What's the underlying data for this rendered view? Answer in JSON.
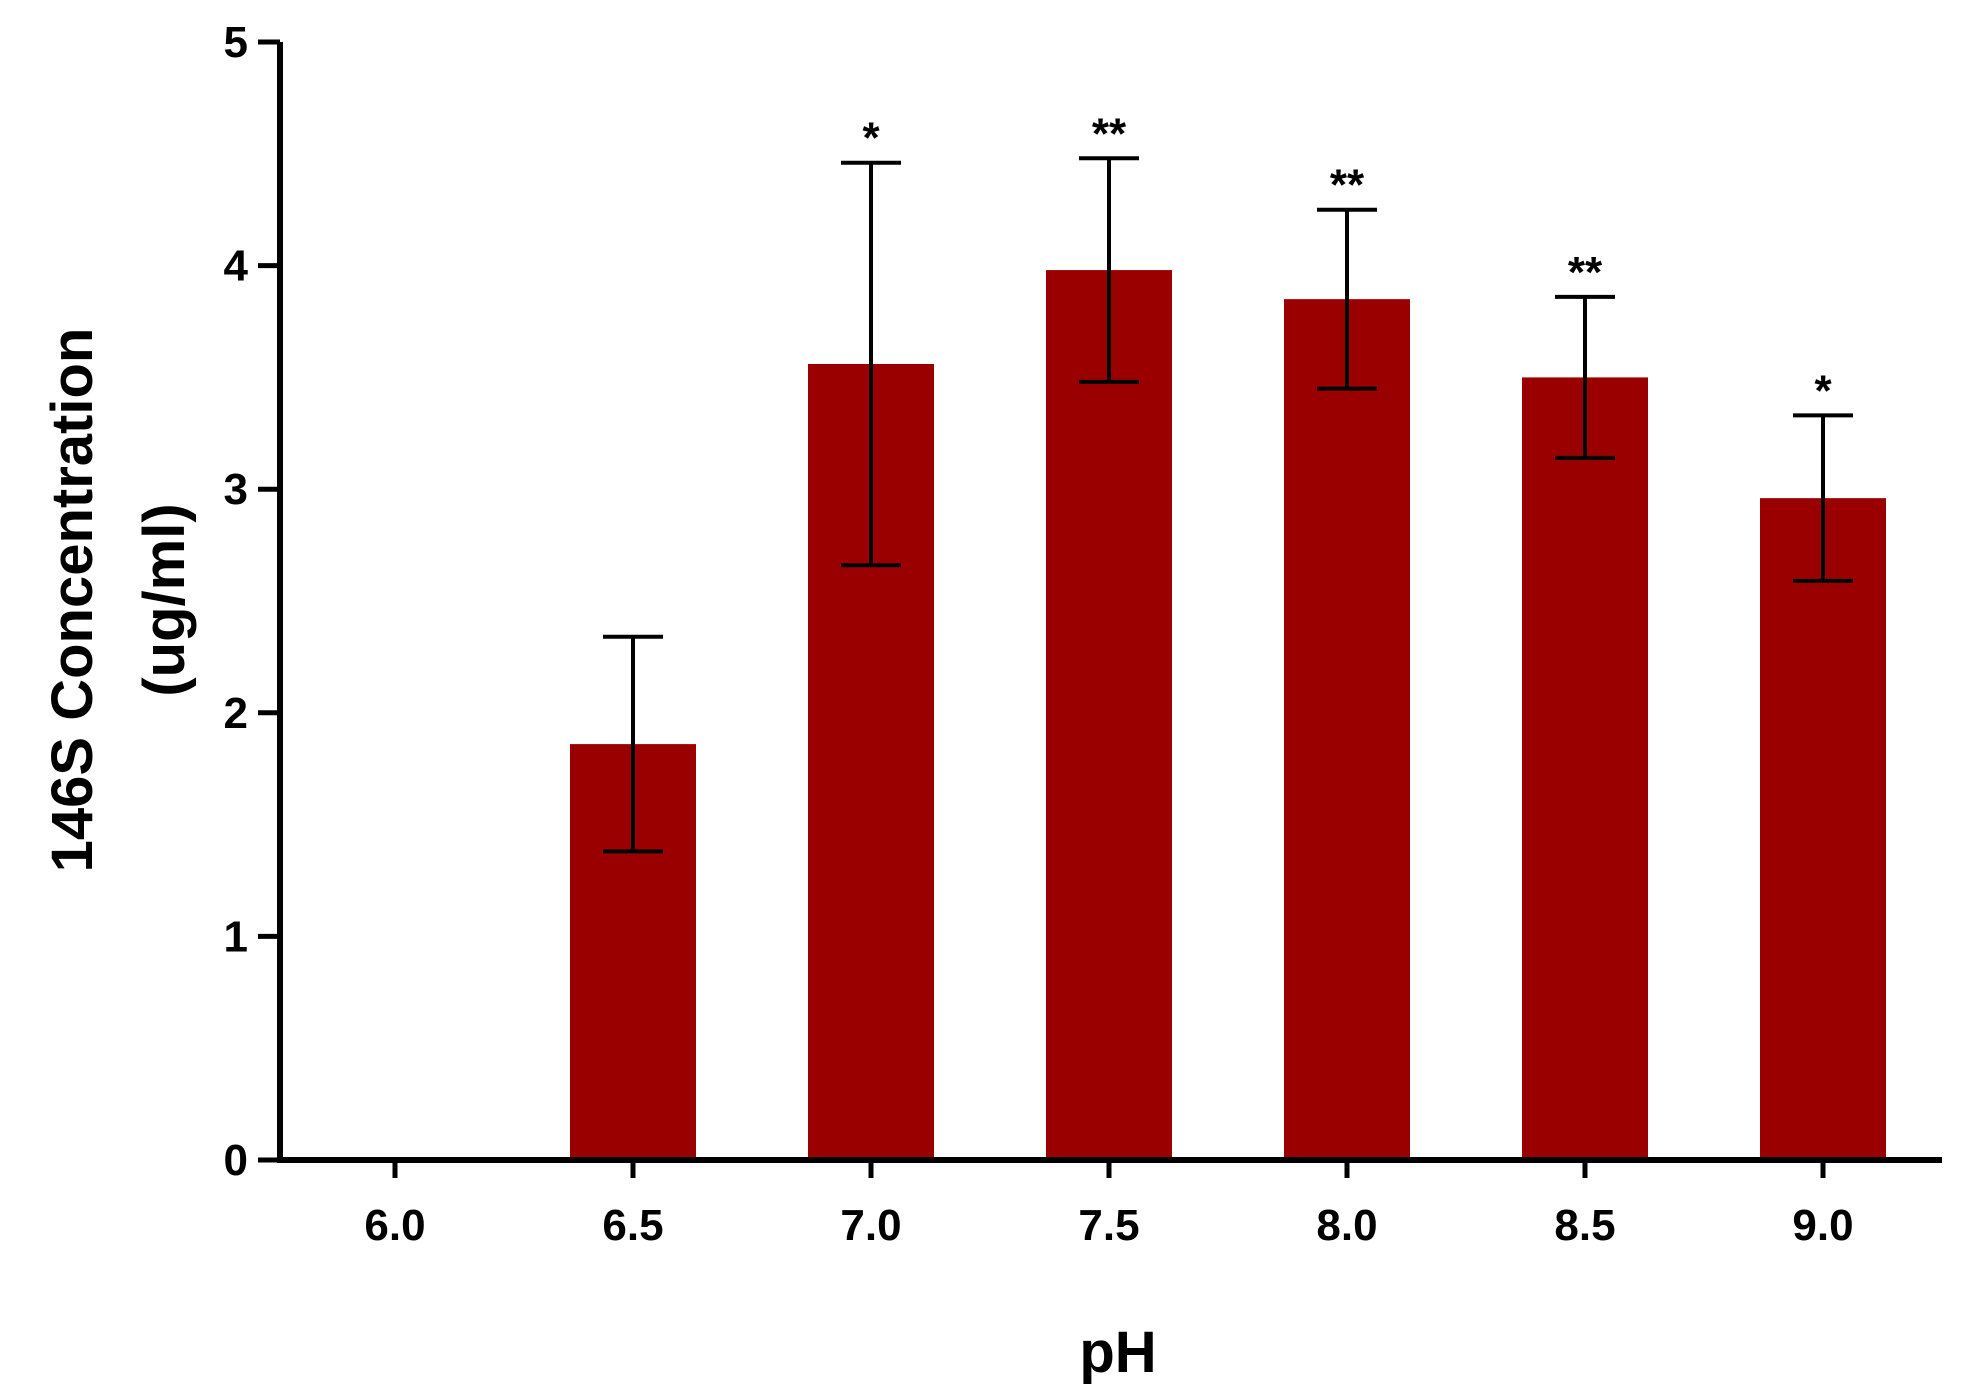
{
  "chart_data": {
    "type": "bar",
    "title": "",
    "xlabel": "pH",
    "ylabel_lines": [
      "146S Concentration",
      "(ug/ml)"
    ],
    "categories": [
      "6.0",
      "6.5",
      "7.0",
      "7.5",
      "8.0",
      "8.5",
      "9.0"
    ],
    "values": [
      0,
      1.86,
      3.56,
      3.98,
      3.85,
      3.5,
      2.96
    ],
    "errors": [
      0,
      0.48,
      0.9,
      0.5,
      0.4,
      0.36,
      0.37
    ],
    "significance": [
      "",
      "",
      "*",
      "**",
      "**",
      "**",
      "*"
    ],
    "ylim": [
      0,
      5
    ],
    "yticks": [
      "0",
      "1",
      "2",
      "3",
      "4",
      "5"
    ],
    "grid": false,
    "legend": "none",
    "bar_color": "#9b0000",
    "axis_color": "#000000"
  }
}
